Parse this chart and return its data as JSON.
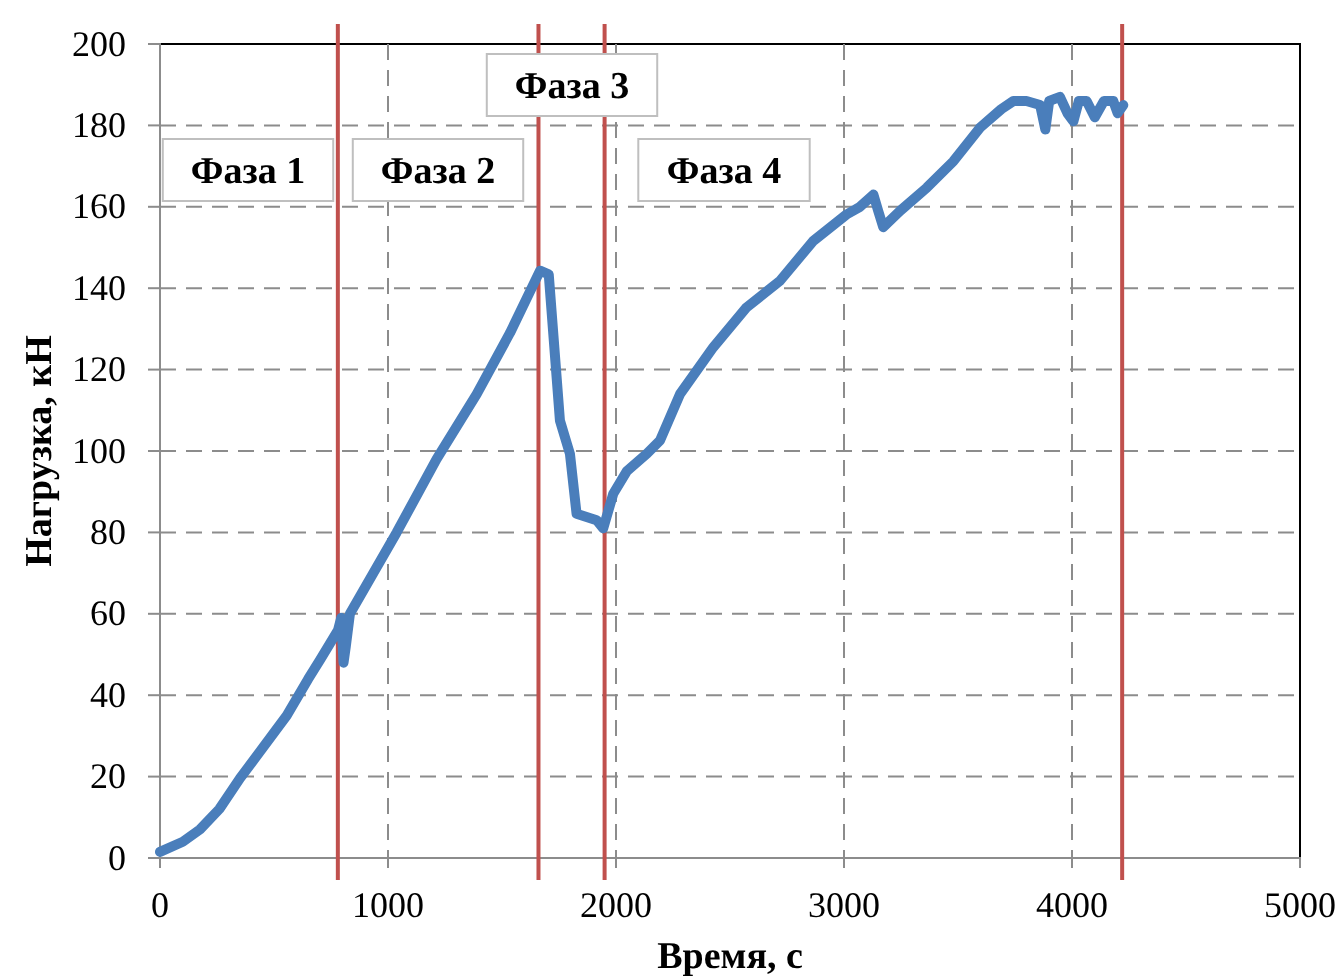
{
  "chart_data": {
    "type": "line",
    "xlabel": "Время, с",
    "ylabel": "Нагрузка, кН",
    "xlim": [
      0,
      5000
    ],
    "xticks": [
      0,
      1000,
      2000,
      3000,
      4000,
      5000
    ],
    "ylim": [
      0,
      200
    ],
    "yticks": [
      0,
      20,
      40,
      60,
      80,
      100,
      120,
      140,
      160,
      180,
      200
    ],
    "grid": true,
    "line_style": "solid",
    "series": [
      {
        "color": "#4a7ebb",
        "x": [
          0,
          100,
          175,
          260,
          351,
          450,
          556,
          650,
          702,
          781,
          795,
          805,
          815,
          833,
          1038,
          1213,
          1389,
          1535,
          1667,
          1705,
          1754,
          1798,
          1827,
          1915,
          1944,
          1988,
          2047,
          2135,
          2193,
          2281,
          2427,
          2573,
          2719,
          2865,
          3011,
          3070,
          3129,
          3150,
          3172,
          3246,
          3363,
          3480,
          3596,
          3690,
          3743,
          3800,
          3860,
          3883,
          3900,
          3947,
          3980,
          4006,
          4030,
          4064,
          4100,
          4140,
          4181,
          4200,
          4225
        ],
        "values": [
          1.5,
          4,
          7,
          12,
          19.6,
          27,
          35,
          44,
          48.7,
          56,
          59,
          48,
          52,
          60,
          80,
          98,
          114,
          129,
          144.3,
          143.4,
          107.5,
          99.3,
          84.6,
          83,
          81,
          89.5,
          95,
          99.3,
          102.6,
          114,
          125.5,
          135.3,
          141.8,
          151.6,
          158.1,
          160,
          163,
          159,
          155,
          159,
          164.7,
          171.2,
          179.4,
          184,
          186,
          186,
          185,
          179,
          186,
          187,
          183,
          181,
          186,
          186,
          182,
          186,
          186,
          183,
          185
        ]
      }
    ],
    "ref_lines": [
      {
        "axis": "x",
        "value": 780,
        "color": "#c0504d"
      },
      {
        "axis": "x",
        "value": 1660,
        "color": "#c0504d"
      },
      {
        "axis": "x",
        "value": 1950,
        "color": "#c0504d"
      },
      {
        "axis": "x",
        "value": 4220,
        "color": "#c0504d"
      }
    ],
    "annotations": [
      "Фаза 1",
      "Фаза 2",
      "Фаза 3",
      "Фаза 4"
    ]
  }
}
